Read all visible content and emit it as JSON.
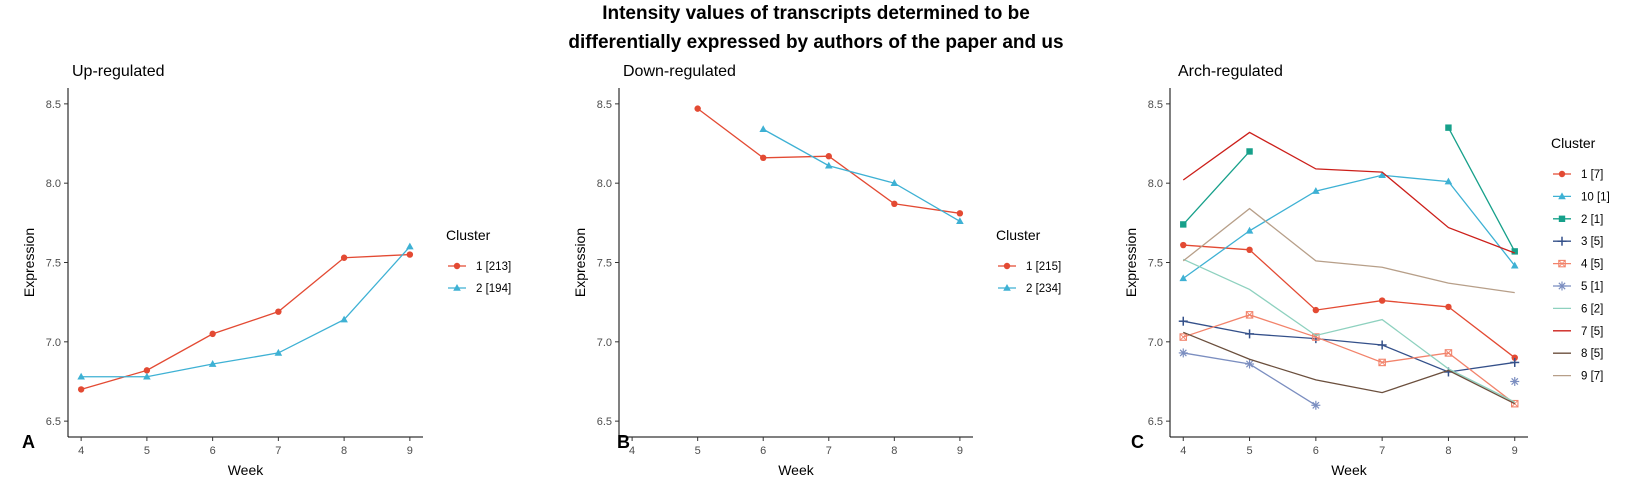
{
  "title_line1": "Intensity values of transcripts determined to be",
  "title_line2": "differentially expressed by authors of the paper and us",
  "chart_data": [
    {
      "type": "line",
      "panel_letter": "A",
      "title": "Up-regulated",
      "xlabel": "Week",
      "ylabel": "Expression",
      "xlim": [
        3.8,
        9.2
      ],
      "ylim": [
        6.4,
        8.6
      ],
      "x_ticks": [
        4,
        5,
        6,
        7,
        8,
        9
      ],
      "y_ticks": [
        6.5,
        7.0,
        7.5,
        8.0,
        8.5
      ],
      "y_tick_labels": [
        "6.5",
        "7.0",
        "7.5",
        "8.0",
        "8.5"
      ],
      "grid": false,
      "legend_title": "Cluster",
      "legend_position": "right",
      "series": [
        {
          "name": "1 [213]",
          "color": "#e34a33",
          "marker": "circle",
          "x": [
            4,
            5,
            6,
            7,
            8,
            9
          ],
          "y": [
            6.7,
            6.82,
            7.05,
            7.19,
            7.53,
            7.55
          ]
        },
        {
          "name": "2 [194]",
          "color": "#3eb1d4",
          "marker": "triangle",
          "x": [
            4,
            5,
            6,
            7,
            8,
            9
          ],
          "y": [
            6.78,
            6.78,
            6.86,
            6.93,
            7.14,
            7.6
          ]
        }
      ]
    },
    {
      "type": "line",
      "panel_letter": "B",
      "title": "Down-regulated",
      "xlabel": "Week",
      "ylabel": "Expression",
      "xlim": [
        3.8,
        9.2
      ],
      "ylim": [
        6.4,
        8.6
      ],
      "x_ticks": [
        4,
        5,
        6,
        7,
        8,
        9
      ],
      "y_ticks": [
        6.5,
        7.0,
        7.5,
        8.0,
        8.5
      ],
      "y_tick_labels": [
        "6.5",
        "7.0",
        "7.5",
        "8.0",
        "8.5"
      ],
      "grid": false,
      "legend_title": "Cluster",
      "legend_position": "right",
      "series": [
        {
          "name": "1 [215]",
          "color": "#e34a33",
          "marker": "circle",
          "x": [
            5,
            6,
            7,
            8,
            9
          ],
          "y": [
            8.47,
            8.16,
            8.17,
            7.87,
            7.81
          ]
        },
        {
          "name": "2 [234]",
          "color": "#3eb1d4",
          "marker": "triangle",
          "x": [
            6,
            7,
            8,
            9
          ],
          "y": [
            8.34,
            8.11,
            8.0,
            7.76
          ]
        }
      ]
    },
    {
      "type": "line",
      "panel_letter": "C",
      "title": "Arch-regulated",
      "xlabel": "Week",
      "ylabel": "Expression",
      "xlim": [
        3.8,
        9.2
      ],
      "ylim": [
        6.4,
        8.6
      ],
      "x_ticks": [
        4,
        5,
        6,
        7,
        8,
        9
      ],
      "y_ticks": [
        6.5,
        7.0,
        7.5,
        8.0,
        8.5
      ],
      "y_tick_labels": [
        "6.5",
        "7.0",
        "7.5",
        "8.0",
        "8.5"
      ],
      "grid": false,
      "legend_title": "Cluster",
      "legend_position": "right",
      "series": [
        {
          "name": "1 [7]",
          "color": "#e34a33",
          "marker": "circle",
          "x": [
            4,
            5,
            6,
            7,
            8,
            9
          ],
          "y": [
            7.61,
            7.58,
            7.2,
            7.26,
            7.22,
            6.9
          ]
        },
        {
          "name": "10 [1]",
          "color": "#3eb1d4",
          "marker": "triangle",
          "x": [
            4,
            5,
            6,
            7,
            8,
            9
          ],
          "y": [
            7.4,
            7.7,
            7.95,
            8.05,
            8.01,
            7.48
          ]
        },
        {
          "name": "2 [1]",
          "color": "#16a08a",
          "marker": "square",
          "segments": [
            {
              "x": [
                4,
                5
              ],
              "y": [
                7.74,
                8.2
              ]
            },
            {
              "x": [
                8,
                9
              ],
              "y": [
                8.35,
                7.57
              ]
            }
          ]
        },
        {
          "name": "3 [5]",
          "color": "#34508a",
          "marker": "plus",
          "x": [
            4,
            5,
            6,
            7,
            8,
            9
          ],
          "y": [
            7.13,
            7.05,
            7.02,
            6.98,
            6.81,
            6.87
          ]
        },
        {
          "name": "4 [5]",
          "color": "#f2836b",
          "marker": "square-open",
          "x": [
            4,
            5,
            6,
            7,
            8,
            9
          ],
          "y": [
            7.03,
            7.17,
            7.03,
            6.87,
            6.93,
            6.61
          ]
        },
        {
          "name": "5 [1]",
          "color": "#7b8ec0",
          "marker": "asterisk",
          "segments": [
            {
              "x": [
                4,
                5,
                6
              ],
              "y": [
                6.93,
                6.86,
                6.6
              ]
            }
          ],
          "points": [
            {
              "x": 9,
              "y": 6.75
            }
          ]
        },
        {
          "name": "6 [2]",
          "color": "#8ed1bf",
          "marker": "none",
          "x": [
            4,
            5,
            6,
            7,
            8,
            9
          ],
          "y": [
            7.52,
            7.33,
            7.04,
            7.14,
            6.83,
            6.62
          ]
        },
        {
          "name": "7 [5]",
          "color": "#cc1f1a",
          "marker": "none",
          "x": [
            4,
            5,
            6,
            7,
            8,
            9
          ],
          "y": [
            8.02,
            8.32,
            8.09,
            8.07,
            7.72,
            7.56
          ]
        },
        {
          "name": "8 [5]",
          "color": "#6b4f3d",
          "marker": "none",
          "x": [
            4,
            5,
            6,
            7,
            8,
            9
          ],
          "y": [
            7.06,
            6.89,
            6.76,
            6.68,
            6.82,
            6.61
          ]
        },
        {
          "name": "9 [7]",
          "color": "#b79f89",
          "marker": "none",
          "x": [
            4,
            5,
            6,
            7,
            8,
            9
          ],
          "y": [
            7.51,
            7.84,
            7.51,
            7.47,
            7.37,
            7.31
          ]
        }
      ]
    }
  ]
}
